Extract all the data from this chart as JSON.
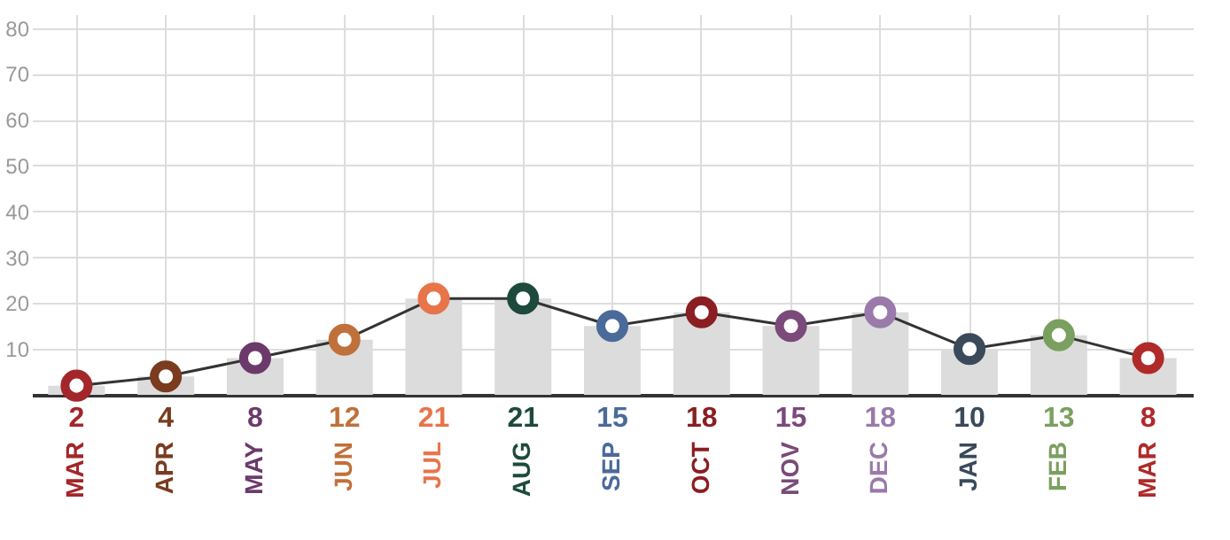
{
  "chart_data": {
    "type": "line",
    "categories": [
      "MAR",
      "APR",
      "MAY",
      "JUN",
      "JUL",
      "AUG",
      "SEP",
      "OCT",
      "NOV",
      "DEC",
      "JAN",
      "FEB",
      "MAR"
    ],
    "series": [
      {
        "type": "bar",
        "color": "#dcdcdc",
        "values": [
          2,
          4,
          8,
          12,
          21,
          21,
          15,
          18,
          15,
          18,
          10,
          13,
          8
        ],
        "value_labels": [
          "2",
          "4",
          "8",
          "12",
          "21",
          "21",
          "15",
          "18",
          "15",
          "18",
          "10",
          "13",
          "8"
        ]
      },
      {
        "color": "#333333",
        "colors": [
          "#a3262a",
          "#7a3b1e",
          "#6b3a6b",
          "#c0703a",
          "#e8744a",
          "#1d4a3c",
          "#4a6a9a",
          "#8a1e22",
          "#7a4a7a",
          "#9a7aaa",
          "#3a4a5a",
          "#7aa060",
          "#b02a2a"
        ],
        "values": [
          2,
          4,
          8,
          12,
          21,
          21,
          15,
          18,
          15,
          18,
          10,
          13,
          8
        ]
      }
    ],
    "ylim": [
      0,
      83
    ],
    "yticks": [
      10,
      20,
      30,
      40,
      50,
      60,
      70,
      80
    ],
    "grid": true,
    "marker": "circle"
  }
}
